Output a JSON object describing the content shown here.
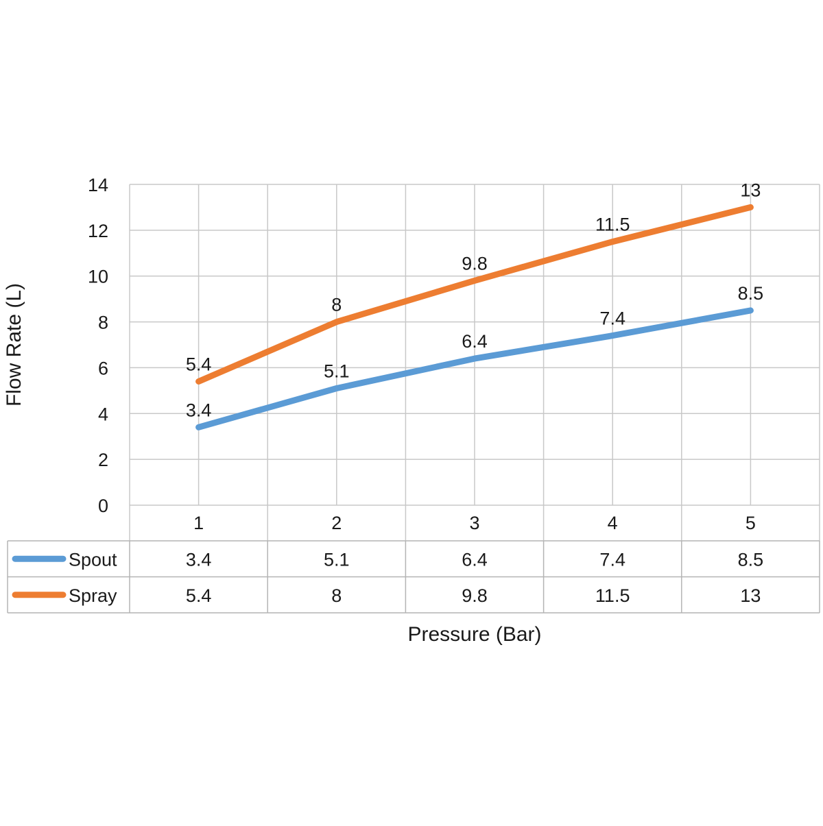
{
  "chart_data": {
    "type": "line",
    "x": [
      1,
      2,
      3,
      4,
      5
    ],
    "x_tick_labels": [
      "1",
      "2",
      "3",
      "4",
      "5"
    ],
    "series": [
      {
        "name": "Spout",
        "color": "#5b9bd5",
        "values": [
          3.4,
          5.1,
          6.4,
          7.4,
          8.5
        ],
        "labels": [
          "3.4",
          "5.1",
          "6.4",
          "7.4",
          "8.5"
        ]
      },
      {
        "name": "Spray",
        "color": "#ed7d31",
        "values": [
          5.4,
          8,
          9.8,
          11.5,
          13
        ],
        "labels": [
          "5.4",
          "8",
          "9.8",
          "11.5",
          "13"
        ]
      }
    ],
    "y_ticks": [
      0,
      2,
      4,
      6,
      8,
      10,
      12,
      14
    ],
    "y_tick_labels": [
      "0",
      "2",
      "4",
      "6",
      "8",
      "10",
      "12",
      "14"
    ],
    "ylim": [
      0,
      14
    ],
    "xlabel": "Pressure (Bar)",
    "ylabel": "Flow Rate (L)",
    "grid": true,
    "data_table": true,
    "legend": "in data table"
  }
}
